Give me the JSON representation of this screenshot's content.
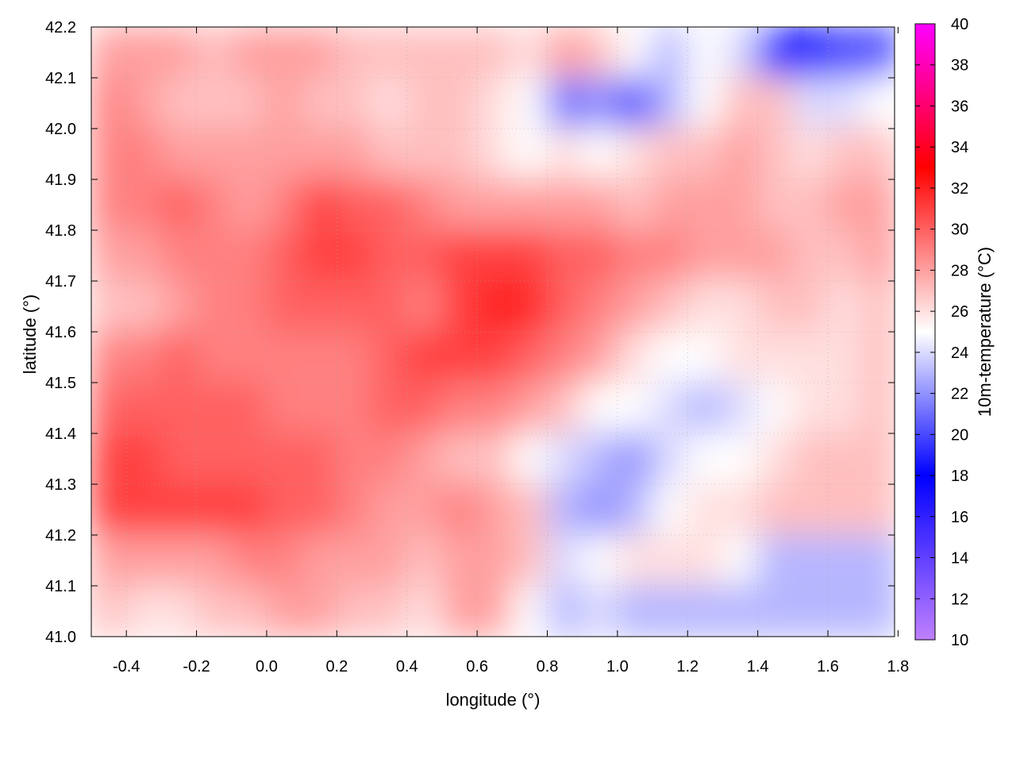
{
  "chart_data": {
    "type": "heatmap",
    "title": "",
    "xlabel": "longitude (°)",
    "ylabel": "latitude (°)",
    "colorbar_label": "10m-temperature (°C)",
    "xlim": [
      -0.5,
      1.79
    ],
    "ylim": [
      41.0,
      42.2
    ],
    "x_ticks": [
      "-0.4",
      "-0.2",
      "0.0",
      "0.2",
      "0.4",
      "0.6",
      "0.8",
      "1.0",
      "1.2",
      "1.4",
      "1.6",
      "1.8"
    ],
    "y_ticks": [
      "41.0",
      "41.1",
      "41.2",
      "41.3",
      "41.4",
      "41.5",
      "41.6",
      "41.7",
      "41.8",
      "41.9",
      "42.0",
      "42.1",
      "42.2"
    ],
    "colorbar_range": [
      10,
      40
    ],
    "colorbar_ticks": [
      "10",
      "12",
      "14",
      "16",
      "18",
      "20",
      "22",
      "24",
      "26",
      "28",
      "30",
      "32",
      "34",
      "36",
      "38",
      "40"
    ],
    "colormap": [
      {
        "value": 10,
        "color": "#c080ff"
      },
      {
        "value": 14,
        "color": "#6040ff"
      },
      {
        "value": 18,
        "color": "#0000ff"
      },
      {
        "value": 25,
        "color": "#ffffff"
      },
      {
        "value": 33,
        "color": "#ff0000"
      },
      {
        "value": 40,
        "color": "#ff00ff"
      }
    ],
    "grid": true,
    "contours": true,
    "lon": [
      -0.45,
      -0.35,
      -0.25,
      -0.15,
      -0.05,
      0.05,
      0.15,
      0.25,
      0.35,
      0.45,
      0.55,
      0.65,
      0.75,
      0.85,
      0.95,
      1.05,
      1.15,
      1.25,
      1.35,
      1.45,
      1.55,
      1.65,
      1.75
    ],
    "lat": [
      42.15,
      42.05,
      41.95,
      41.85,
      41.75,
      41.65,
      41.55,
      41.45,
      41.35,
      41.25,
      41.15,
      41.05
    ],
    "values": [
      [
        28,
        28,
        28,
        27,
        28,
        28,
        28,
        27,
        27,
        27,
        27,
        27,
        26,
        28,
        27,
        25,
        23,
        25,
        24,
        19,
        18,
        20,
        20
      ],
      [
        29,
        28,
        27,
        27,
        27,
        28,
        27,
        27,
        26,
        27,
        27,
        26,
        25,
        21,
        22,
        20,
        23,
        25,
        27,
        27,
        24,
        24,
        25
      ],
      [
        29,
        29,
        28,
        28,
        28,
        28,
        28,
        28,
        27,
        27,
        27,
        26,
        25,
        26,
        25,
        26,
        27,
        27,
        28,
        27,
        26,
        27,
        27
      ],
      [
        29,
        29,
        30,
        29,
        28,
        29,
        31,
        30,
        30,
        29,
        28,
        28,
        28,
        28,
        28,
        27,
        28,
        28,
        28,
        27,
        27,
        28,
        28
      ],
      [
        28,
        28,
        29,
        29,
        29,
        30,
        31,
        31,
        30,
        30,
        31,
        31,
        31,
        30,
        30,
        29,
        29,
        28,
        28,
        28,
        27,
        27,
        28
      ],
      [
        27,
        27,
        28,
        29,
        29,
        30,
        30,
        30,
        30,
        29,
        31,
        32,
        32,
        30,
        29,
        28,
        27,
        26,
        26,
        27,
        27,
        26,
        27
      ],
      [
        29,
        29,
        30,
        29,
        29,
        29,
        29,
        29,
        30,
        31,
        31,
        31,
        30,
        29,
        28,
        26,
        25,
        25,
        26,
        26,
        26,
        26,
        27
      ],
      [
        30,
        30,
        30,
        30,
        30,
        29,
        29,
        29,
        30,
        30,
        29,
        29,
        28,
        27,
        25,
        25,
        24,
        23,
        24,
        25,
        26,
        26,
        27
      ],
      [
        31,
        31,
        30,
        30,
        30,
        30,
        30,
        29,
        29,
        28,
        27,
        27,
        25,
        24,
        23,
        22,
        24,
        25,
        25,
        26,
        27,
        27,
        27
      ],
      [
        31,
        31,
        31,
        31,
        31,
        30,
        30,
        29,
        28,
        28,
        29,
        28,
        27,
        23,
        22,
        23,
        25,
        26,
        26,
        27,
        27,
        27,
        27
      ],
      [
        28,
        28,
        28,
        28,
        29,
        29,
        28,
        28,
        28,
        27,
        28,
        28,
        27,
        24,
        25,
        26,
        26,
        26,
        25,
        23,
        23,
        23,
        23
      ],
      [
        27,
        26,
        26,
        27,
        27,
        28,
        28,
        27,
        27,
        26,
        28,
        28,
        25,
        23,
        24,
        23,
        23,
        23,
        23,
        23,
        23,
        23,
        23
      ]
    ]
  }
}
